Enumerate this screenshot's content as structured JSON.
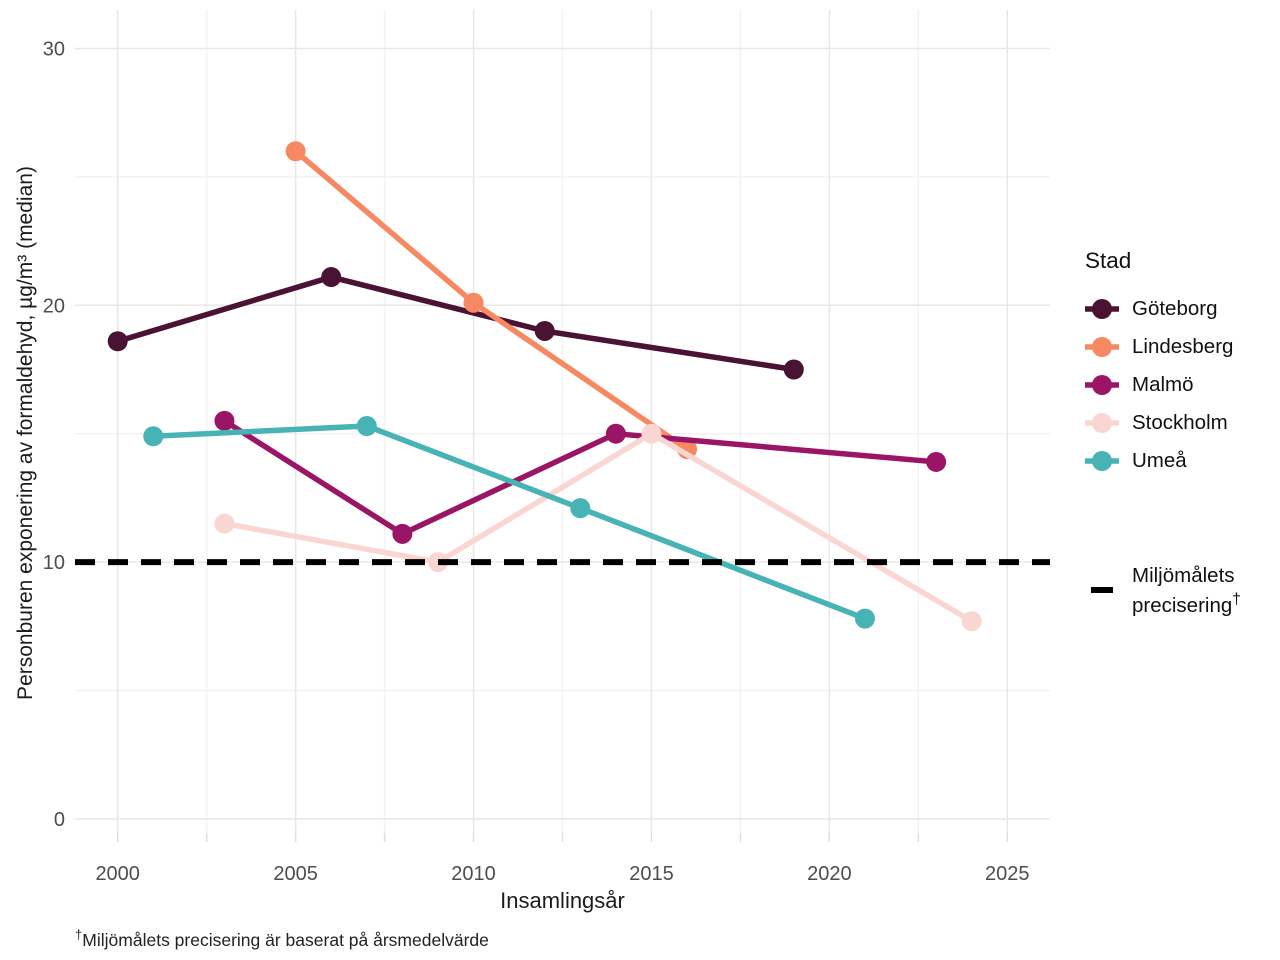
{
  "chart_data": {
    "type": "line",
    "title": "",
    "xlabel": "Insamlingsår",
    "ylabel": "Personburen exponering av formaldehyd, µg/m³ (median)",
    "x_ticks": [
      2000,
      2005,
      2010,
      2015,
      2020,
      2025
    ],
    "y_ticks": [
      0,
      10,
      20,
      30
    ],
    "xlim": [
      1998.8,
      2026.2
    ],
    "ylim": [
      -0.55,
      31.5
    ],
    "grid": true,
    "background": "#ffffff",
    "legend_title": "Stad",
    "legend_position": "right",
    "series": [
      {
        "name": "Göteborg",
        "color": "#4a1233",
        "points": [
          [
            2000,
            18.6
          ],
          [
            2006,
            21.1
          ],
          [
            2012,
            19.0
          ],
          [
            2019,
            17.5
          ]
        ]
      },
      {
        "name": "Lindesberg",
        "color": "#f68862",
        "points": [
          [
            2005,
            26.0
          ],
          [
            2010,
            20.1
          ],
          [
            2016,
            14.4
          ]
        ]
      },
      {
        "name": "Malmö",
        "color": "#9b1566",
        "points": [
          [
            2003,
            15.5
          ],
          [
            2008,
            11.1
          ],
          [
            2014,
            15.0
          ],
          [
            2023,
            13.9
          ]
        ]
      },
      {
        "name": "Stockholm",
        "color": "#fad6d2",
        "points": [
          [
            2003,
            11.5
          ],
          [
            2009,
            10.0
          ],
          [
            2015,
            15.0
          ],
          [
            2024,
            7.7
          ]
        ]
      },
      {
        "name": "Umeå",
        "color": "#47b3b5",
        "points": [
          [
            2001,
            14.9
          ],
          [
            2007,
            15.3
          ],
          [
            2013,
            12.1
          ],
          [
            2021,
            7.8
          ]
        ]
      }
    ],
    "reference_line": {
      "value": 10,
      "color": "#000000",
      "style": "dashed",
      "legend_label_line1": "Miljömålets",
      "legend_label_line2": "precisering",
      "legend_dagger": "†"
    },
    "footnote": {
      "dagger": "†",
      "text": "Miljömålets precisering är baserat på årsmedelvärde"
    }
  }
}
